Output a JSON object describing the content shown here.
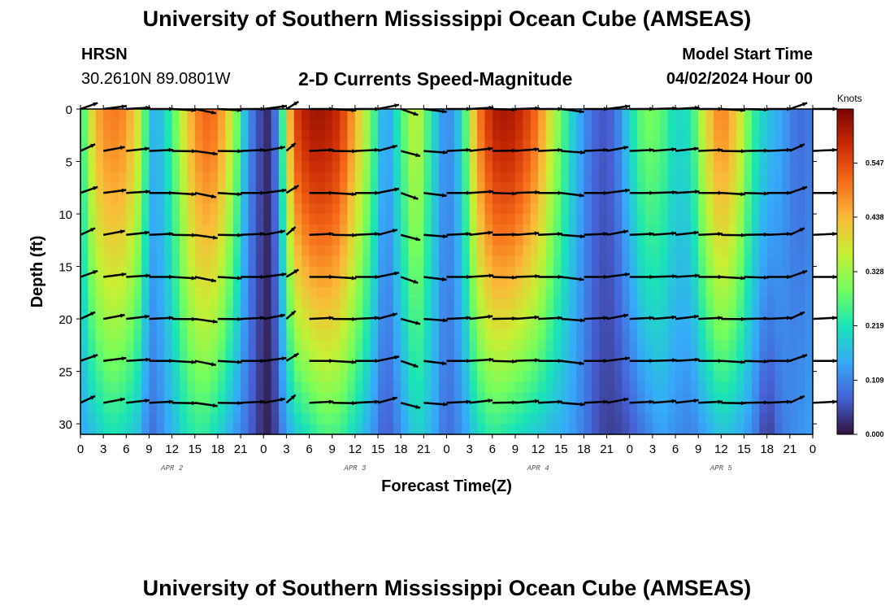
{
  "header": {
    "title": "University of Southern Mississippi Ocean Cube (AMSEAS)",
    "station_name": "HRSN",
    "station_coords": "30.2610N  89.0801W",
    "chart_title": "2-D Currents Speed-Magnitude",
    "model_label": "Model Start Time",
    "model_start": "04/02/2024 Hour 00"
  },
  "footer": {
    "title": "University of Southern Mississippi Ocean Cube (AMSEAS)"
  },
  "colors": {
    "colormap": [
      "#30123b",
      "#4662d7",
      "#36aaf9",
      "#1ae4b6",
      "#72fe5e",
      "#c8ef34",
      "#faba39",
      "#f66b19",
      "#ca2a04",
      "#7a0403"
    ]
  },
  "chart_data": {
    "type": "heatmap",
    "title": "2-D Currents Speed-Magnitude",
    "xlabel": "Forecast Time(Z)",
    "ylabel": "Depth (ft)",
    "xlim": [
      0,
      96
    ],
    "ylim": [
      31,
      0
    ],
    "x_tick_values": [
      0,
      3,
      6,
      9,
      12,
      15,
      18,
      21,
      24,
      27,
      30,
      33,
      36,
      39,
      42,
      45,
      48,
      51,
      54,
      57,
      60,
      63,
      66,
      69,
      72,
      75,
      78,
      81,
      84,
      87,
      90,
      93,
      96
    ],
    "x_tick_labels": [
      "0",
      "3",
      "6",
      "9",
      "12",
      "15",
      "18",
      "21",
      "0",
      "3",
      "6",
      "9",
      "12",
      "15",
      "18",
      "21",
      "0",
      "3",
      "6",
      "9",
      "12",
      "15",
      "18",
      "21",
      "0",
      "3",
      "6",
      "9",
      "12",
      "15",
      "18",
      "21",
      "0"
    ],
    "day_labels": [
      {
        "label": "APR 2",
        "x": 12
      },
      {
        "label": "APR 3",
        "x": 36
      },
      {
        "label": "APR 4",
        "x": 60
      },
      {
        "label": "APR 5",
        "x": 84
      }
    ],
    "y_ticks": [
      0,
      5,
      10,
      15,
      20,
      25,
      30
    ],
    "colorbar": {
      "label": "Knots",
      "range": [
        0,
        0.656
      ],
      "ticks": [
        0.0,
        0.109,
        0.219,
        0.328,
        0.438,
        0.547
      ],
      "tick_labels": [
        "0.000",
        "0.109",
        "0.219",
        "0.328",
        "0.438",
        "0.547"
      ]
    },
    "speed_profile": {
      "hours": [
        0,
        2,
        4,
        6,
        8,
        9,
        10,
        12,
        14,
        16,
        18,
        20,
        22,
        24,
        25,
        26,
        28,
        30,
        32,
        34,
        36,
        38,
        40,
        42,
        44,
        46,
        48,
        50,
        52,
        54,
        56,
        58,
        60,
        62,
        64,
        66,
        68,
        70,
        72,
        74,
        76,
        78,
        80,
        82,
        84,
        86,
        88,
        90,
        92,
        94,
        96
      ],
      "surface_knots": [
        0.22,
        0.45,
        0.5,
        0.48,
        0.35,
        0.18,
        0.15,
        0.25,
        0.42,
        0.52,
        0.5,
        0.35,
        0.12,
        0.03,
        0.02,
        0.15,
        0.55,
        0.62,
        0.62,
        0.58,
        0.45,
        0.3,
        0.12,
        0.25,
        0.38,
        0.22,
        0.1,
        0.2,
        0.48,
        0.6,
        0.62,
        0.58,
        0.5,
        0.35,
        0.22,
        0.12,
        0.06,
        0.08,
        0.2,
        0.3,
        0.28,
        0.2,
        0.22,
        0.4,
        0.5,
        0.42,
        0.25,
        0.18,
        0.14,
        0.08,
        0.1
      ],
      "bottom_knots": [
        0.14,
        0.18,
        0.22,
        0.2,
        0.16,
        0.08,
        0.1,
        0.16,
        0.22,
        0.24,
        0.2,
        0.14,
        0.08,
        0.02,
        0.01,
        0.08,
        0.18,
        0.22,
        0.26,
        0.25,
        0.2,
        0.14,
        0.06,
        0.12,
        0.2,
        0.16,
        0.08,
        0.12,
        0.2,
        0.24,
        0.22,
        0.2,
        0.18,
        0.16,
        0.14,
        0.1,
        0.05,
        0.04,
        0.06,
        0.1,
        0.14,
        0.12,
        0.1,
        0.14,
        0.18,
        0.16,
        0.12,
        0.03,
        0.1,
        0.12,
        0.14
      ]
    },
    "vector_depths": [
      0,
      4,
      8,
      12,
      16,
      20,
      24,
      28
    ],
    "vector_hours": [
      0,
      3,
      6,
      9,
      12,
      15,
      18,
      21,
      24,
      27,
      30,
      33,
      36,
      39,
      42,
      45,
      48,
      51,
      54,
      57,
      60,
      63,
      66,
      69,
      72,
      75,
      78,
      81,
      84,
      87,
      90,
      93,
      96
    ],
    "vector_directions_deg": [
      45,
      20,
      10,
      0,
      350,
      330,
      350,
      0,
      20,
      60,
      0,
      350,
      0,
      30,
      315,
      340,
      0,
      10,
      355,
      5,
      0,
      340,
      0,
      20,
      0,
      5,
      10,
      0,
      350,
      355,
      0,
      45,
      0
    ]
  }
}
